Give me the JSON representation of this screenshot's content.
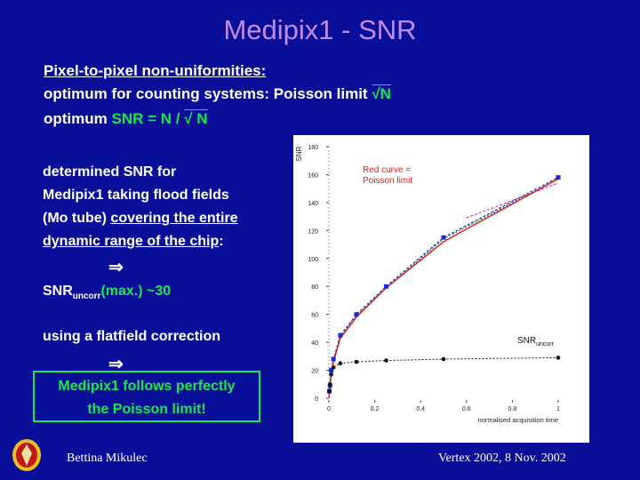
{
  "title": "Medipix1 - SNR",
  "lines": {
    "l1": "Pixel-to-pixel non-uniformities:",
    "l2_pre": "optimum for counting systems: Poisson limit ",
    "l2_sqrt": "√",
    "l2_n": "N",
    "l3_pre": "optimum ",
    "l3_snr": "SNR = N / ",
    "l3_sqrt": "√",
    "l3_n": " N"
  },
  "body": {
    "p1": "determined SNR for",
    "p2": "Medipix1 taking flood fields",
    "p3_pre": "(Mo tube) ",
    "p3_u": "covering the entire",
    "p4_u": "dynamic range of the chip",
    "p4_post": ":",
    "arrow": "⇒",
    "snr_main": "SNR",
    "snr_sub": "uncorr",
    "snr_post": "(max.) ~30",
    "p5": "using a flatfield correction",
    "box1": "Medipix1 follows perfectly",
    "box2": "the Poisson limit!"
  },
  "footer": {
    "author": "Bettina Mikulec",
    "event": "Vertex 2002, 8 Nov. 2002"
  },
  "chart_data": {
    "type": "line",
    "ylabel": "SNR",
    "xlabel": "normalised acquisition time",
    "xlim": [
      0,
      1
    ],
    "ylim": [
      0,
      180
    ],
    "xticks": [
      "0",
      "0.2",
      "0.4",
      "0.6",
      "0.8",
      "1"
    ],
    "yticks": [
      "0",
      "20",
      "40",
      "60",
      "80",
      "100",
      "120",
      "140",
      "160",
      "180"
    ],
    "annotation_red": [
      "Red curve =",
      "Poisson limit"
    ],
    "annotation_uncorr_main": "SNR",
    "annotation_uncorr_sub": "uncorr",
    "colors": {
      "red": "#e01a1a",
      "blue": "#1a2bd6",
      "black": "#111111",
      "green": "#1a8a2a"
    },
    "series": [
      {
        "id": "corrected",
        "x": [
          0.002,
          0.005,
          0.01,
          0.02,
          0.05,
          0.12,
          0.25,
          0.5,
          1.0
        ],
        "y": [
          5,
          9,
          20,
          28,
          45,
          60,
          80,
          115,
          158
        ]
      },
      {
        "id": "poisson",
        "x": [
          0,
          0.002,
          0.005,
          0.01,
          0.02,
          0.05,
          0.12,
          0.25,
          0.5,
          1.0
        ],
        "y": [
          0,
          4,
          9,
          18,
          26,
          43,
          58,
          79,
          112,
          157
        ]
      },
      {
        "id": "uncorr",
        "x": [
          0.002,
          0.005,
          0.01,
          0.02,
          0.05,
          0.12,
          0.25,
          0.5,
          1.0
        ],
        "y": [
          5,
          10,
          17,
          22,
          25,
          26,
          27,
          28,
          29
        ]
      }
    ]
  }
}
